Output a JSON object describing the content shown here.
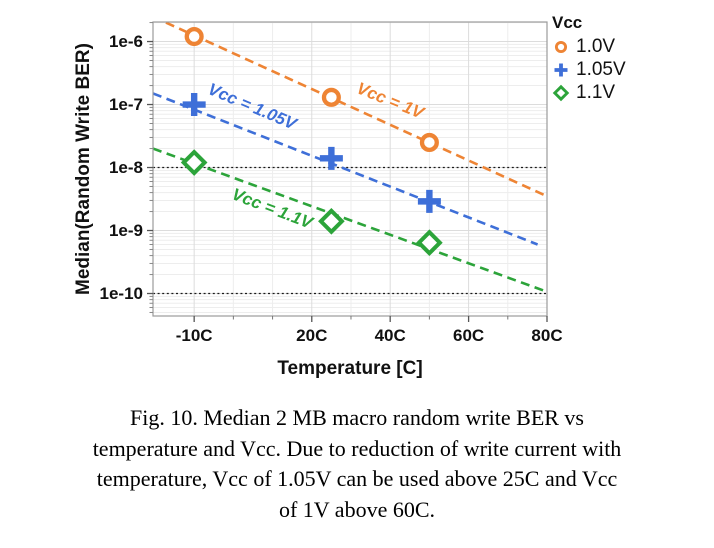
{
  "figure": {
    "caption_lines": [
      "Fig. 10. Median 2 MB macro random write BER vs",
      "temperature and Vcc. Due to reduction of write current with",
      "temperature, Vcc of 1.05V can be used above 25C and Vcc",
      "of 1V above 60C."
    ]
  },
  "chart_data": {
    "type": "scatter",
    "title": "",
    "xlabel": "Temperature [C]",
    "ylabel": "Median(Random Write BER)",
    "xlim": [
      -20.5,
      80
    ],
    "ylim_exp": [
      -5.69,
      -10.357
    ],
    "grid": true,
    "x_ticks": [
      {
        "t": -10,
        "label": "-10C"
      },
      {
        "t": 20,
        "label": "20C"
      },
      {
        "t": 40,
        "label": "40C"
      },
      {
        "t": 60,
        "label": "60C"
      },
      {
        "t": 80,
        "label": "80C"
      }
    ],
    "x_minor_ticks": [
      0,
      10,
      30,
      50,
      70
    ],
    "y_ticks": [
      {
        "exp": -6,
        "label": "1e-6"
      },
      {
        "exp": -7,
        "label": "1e-7"
      },
      {
        "exp": -8,
        "label": "1e-8"
      },
      {
        "exp": -9,
        "label": "1e-9"
      },
      {
        "exp": -10,
        "label": "1e-10"
      }
    ],
    "reference_lines_exp": [
      -8,
      -10
    ],
    "reference_line_color": "#1a1a1a",
    "legend": {
      "title": "Vcc",
      "position": "right"
    },
    "series": [
      {
        "name": "1.0V",
        "color": "#EE8434",
        "marker": "circle",
        "points": [
          {
            "t": -10,
            "ber": 1.2e-06
          },
          {
            "t": 25,
            "ber": 1.3e-07
          },
          {
            "t": 50,
            "ber": 2.5e-08
          }
        ],
        "trend": {
          "t1": -17.2,
          "ber1": 2e-06,
          "t2": 80,
          "ber2": 3.5e-09
        },
        "annotation": {
          "text": "Vcc = 1V",
          "t": 40,
          "ber": 1.14e-07,
          "angle_deg": 22
        }
      },
      {
        "name": "1.05V",
        "color": "#3E6FD8",
        "marker": "plus",
        "points": [
          {
            "t": -10,
            "ber": 1e-07
          },
          {
            "t": 25,
            "ber": 1.4e-08
          },
          {
            "t": 50,
            "ber": 2.9e-09
          }
        ],
        "trend": {
          "t1": -20.5,
          "ber1": 1.5e-07,
          "t2": 77.6,
          "ber2": 6e-10
        },
        "annotation": {
          "text": "Vcc = 1.05V",
          "t": 4.8,
          "ber": 9.1e-08,
          "angle_deg": 23
        }
      },
      {
        "name": "1.1V",
        "color": "#2CA43A",
        "marker": "diamond",
        "points": [
          {
            "t": -10,
            "ber": 1.2e-08
          },
          {
            "t": 25,
            "ber": 1.4e-09
          },
          {
            "t": 50,
            "ber": 6.4e-10
          }
        ],
        "trend": {
          "t1": -20.5,
          "ber1": 2e-08,
          "t2": 79.4,
          "ber2": 1.1e-10
        },
        "annotation": {
          "text": "Vcc = 1.1V",
          "t": 9.9,
          "ber": 2.2e-09,
          "angle_deg": 21
        }
      }
    ]
  }
}
